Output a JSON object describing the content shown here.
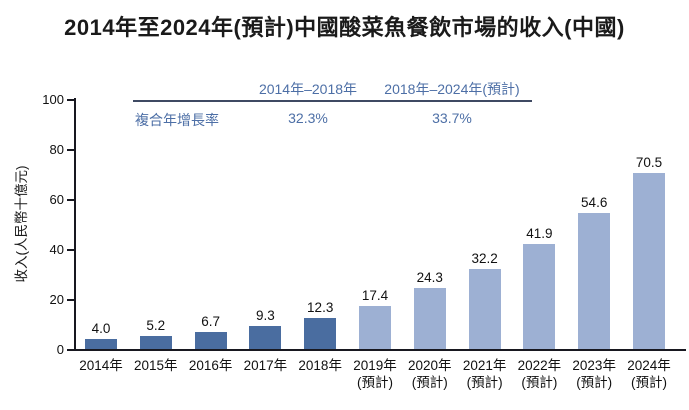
{
  "title": "2014年至2024年(預計)中國酸菜魚餐飲市場的收入(中國)",
  "cagr_table": {
    "row_label": "複合年增長率",
    "columns": [
      {
        "period": "2014年–2018年",
        "value": "32.3%"
      },
      {
        "period": "2018年–2024年(預計)",
        "value": "33.7%"
      }
    ]
  },
  "chart_data": {
    "type": "bar",
    "title": "2014年至2024年(預計)中國酸菜魚餐飲市場的收入(中國)",
    "xlabel": "",
    "ylabel": "收入(人民幣十億元)",
    "ylim": [
      0,
      100
    ],
    "yticks": [
      0,
      20,
      40,
      60,
      80,
      100
    ],
    "grid": false,
    "legend": "none",
    "bar_colors": {
      "historical": "#4a6da0",
      "forecast": "#9db0d3"
    },
    "bars": [
      {
        "category": "2014年",
        "sublabel": "",
        "value": 4.0,
        "type": "historical"
      },
      {
        "category": "2015年",
        "sublabel": "",
        "value": 5.2,
        "type": "historical"
      },
      {
        "category": "2016年",
        "sublabel": "",
        "value": 6.7,
        "type": "historical"
      },
      {
        "category": "2017年",
        "sublabel": "",
        "value": 9.3,
        "type": "historical"
      },
      {
        "category": "2018年",
        "sublabel": "",
        "value": 12.3,
        "type": "historical"
      },
      {
        "category": "2019年",
        "sublabel": "(預計)",
        "value": 17.4,
        "type": "forecast"
      },
      {
        "category": "2020年",
        "sublabel": "(預計)",
        "value": 24.3,
        "type": "forecast"
      },
      {
        "category": "2021年",
        "sublabel": "(預計)",
        "value": 32.2,
        "type": "forecast"
      },
      {
        "category": "2022年",
        "sublabel": "(預計)",
        "value": 41.9,
        "type": "forecast"
      },
      {
        "category": "2023年",
        "sublabel": "(預計)",
        "value": 54.6,
        "type": "forecast"
      },
      {
        "category": "2024年",
        "sublabel": "(預計)",
        "value": 70.5,
        "type": "forecast"
      }
    ]
  },
  "colors": {
    "accent_text": "#4d6fa6",
    "axis": "#181820",
    "divider": "#3f4a63",
    "title_text": "#1a1a1a"
  }
}
